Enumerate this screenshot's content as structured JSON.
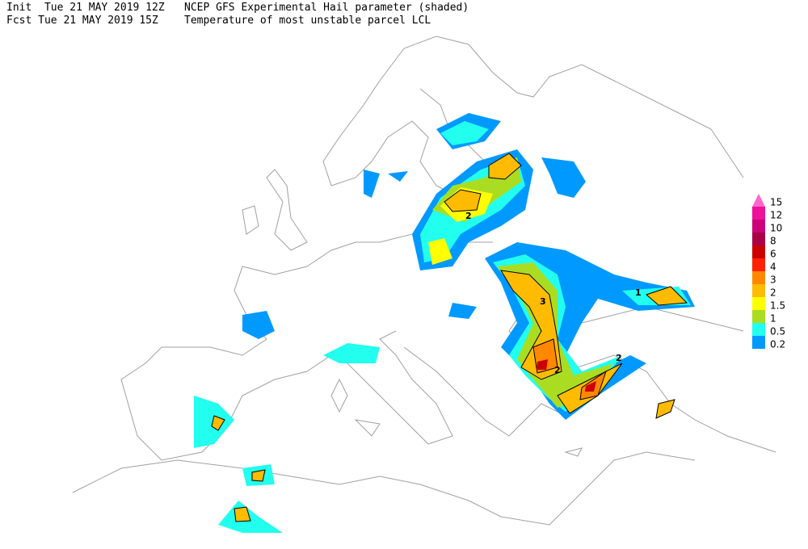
{
  "header": {
    "init": "Init  Tue 21 MAY 2019 12Z",
    "title": "NCEP GFS Experimental Hail parameter (shaded)",
    "fcst": "Fcst Tue 21 MAY 2019 15Z",
    "subtitle": "Temperature of most unstable parcel LCL"
  },
  "colorbar": {
    "levels": [
      15,
      12,
      10,
      8,
      6,
      4,
      3,
      2,
      1.5,
      1,
      0.5,
      0.2
    ],
    "colors": [
      "#ff66cc",
      "#ee1199",
      "#cc0077",
      "#aa0044",
      "#cc0000",
      "#ff2200",
      "#ff8800",
      "#ffbb00",
      "#ffff00",
      "#aadd22",
      "#22ffee",
      "#0099ff"
    ]
  },
  "contour_labels": [
    "2",
    "3",
    "2",
    "2",
    "1"
  ]
}
